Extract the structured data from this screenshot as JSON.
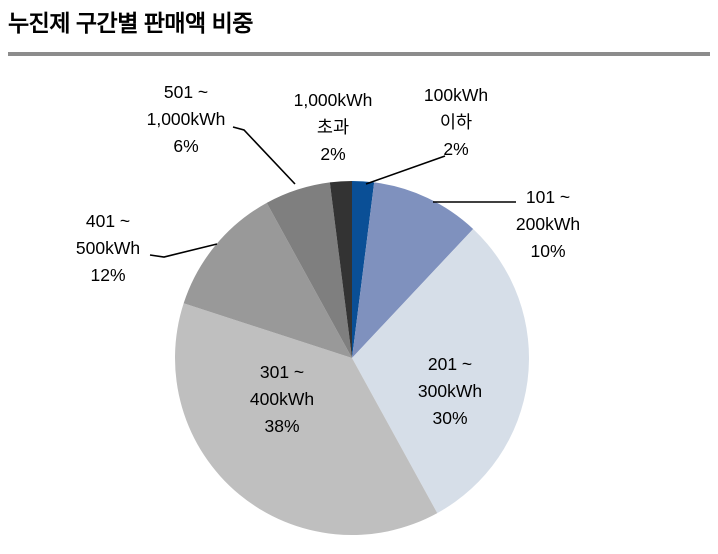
{
  "title": "누진제 구간별 판매액 비중",
  "rule_color": "#8c8c8c",
  "chart_data": {
    "type": "pie",
    "title": "누진제 구간별 판매액 비중",
    "unit": "%",
    "start_angle_deg": 0,
    "direction": "clockwise",
    "legend_position": "none",
    "segments": [
      {
        "name": "100kWh 이하",
        "value": 2,
        "color": "#0A4F96",
        "label_lines": [
          "100kWh",
          "이하",
          "2%"
        ]
      },
      {
        "name": "101 ~ 200kWh",
        "value": 10,
        "color": "#7F91BE",
        "label_lines": [
          "101 ~",
          "200kWh",
          "10%"
        ]
      },
      {
        "name": "201 ~ 300kWh",
        "value": 30,
        "color": "#D6DEE8",
        "label_lines": [
          "201 ~",
          "300kWh",
          "30%"
        ]
      },
      {
        "name": "301 ~ 400kWh",
        "value": 38,
        "color": "#BFBFBF",
        "label_lines": [
          "301 ~",
          "400kWh",
          "38%"
        ]
      },
      {
        "name": "401 ~ 500kWh",
        "value": 12,
        "color": "#999999",
        "label_lines": [
          "401 ~",
          "500kWh",
          "12%"
        ]
      },
      {
        "name": "501 ~ 1,000kWh",
        "value": 6,
        "color": "#7F7F7F",
        "label_lines": [
          "501 ~",
          "1,000kWh",
          "6%"
        ]
      },
      {
        "name": "1,000kWh 초과",
        "value": 2,
        "color": "#333333",
        "label_lines": [
          "1,000kWh",
          "초과",
          "2%"
        ]
      }
    ]
  }
}
